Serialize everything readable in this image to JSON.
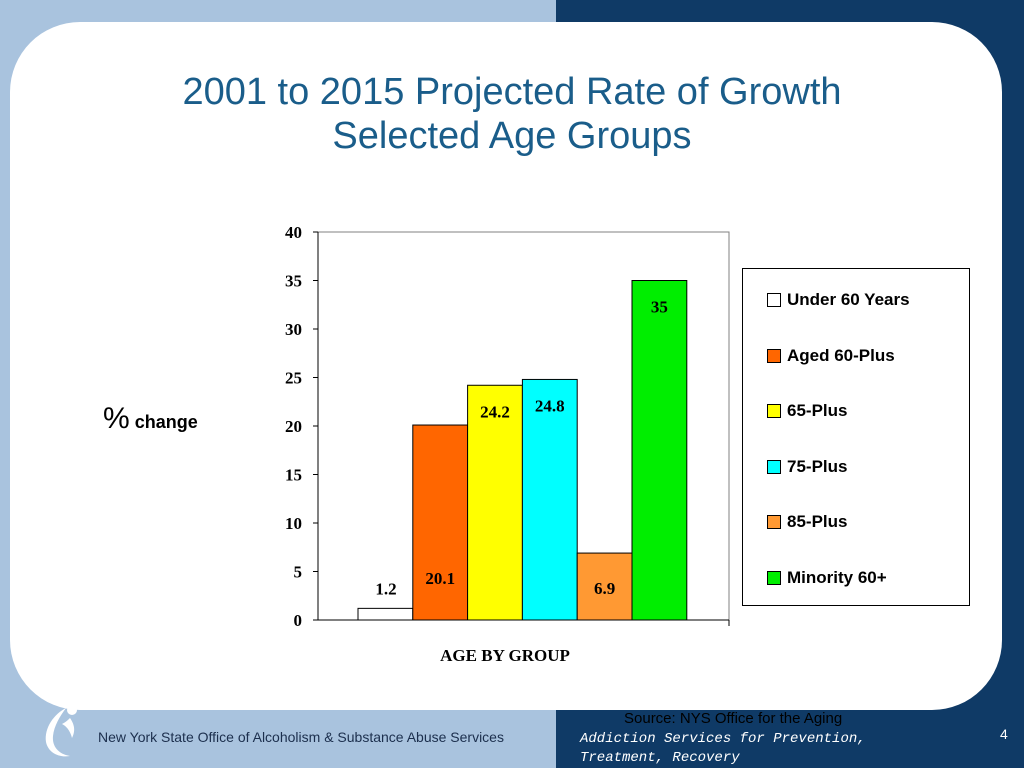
{
  "slide": {
    "title_line1": "2001 to 2015 Projected Rate of Growth",
    "title_line2": "Selected Age Groups",
    "source": "Source: NYS Office for the Aging",
    "footer_org": "New York State Office of Alcoholism & Substance Abuse Services",
    "footer_tagline": "Addiction Services for Prevention,\nTreatment, Recovery",
    "page_number": "4",
    "logo_icon": "figure-swoosh-icon"
  },
  "chart_data": {
    "type": "bar",
    "categories": [
      "Under 60 Years",
      "Aged 60-Plus",
      "65-Plus",
      "75-Plus",
      "85-Plus",
      "Minority 60+"
    ],
    "values": [
      1.2,
      20.1,
      24.2,
      24.8,
      6.9,
      35
    ],
    "value_labels": [
      "1.2",
      "20.1",
      "24.2",
      "24.8",
      "6.9",
      "35"
    ],
    "colors": [
      "#ffffff",
      "#ff6600",
      "#ffff00",
      "#00ffff",
      "#ff9933",
      "#00ee00"
    ],
    "ylabel_symbol": "%",
    "ylabel_text": "change",
    "xlabel": "AGE BY GROUP",
    "ylim": [
      0,
      40
    ],
    "yticks": [
      0,
      5,
      10,
      15,
      20,
      25,
      30,
      35,
      40
    ],
    "grid": false,
    "legend_position": "right"
  }
}
